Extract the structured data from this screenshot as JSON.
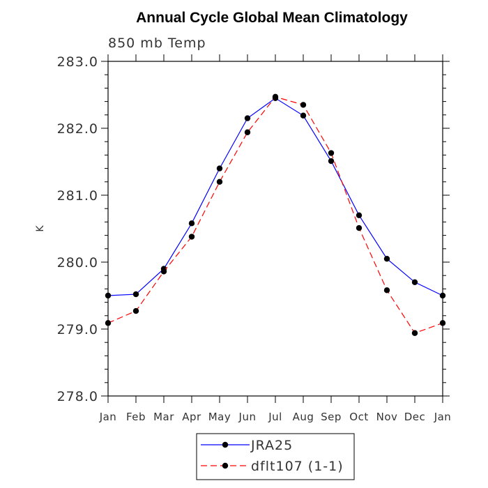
{
  "title": "Annual Cycle Global Mean Climatology",
  "chart_data": {
    "type": "line",
    "title": "Annual Cycle Global Mean Climatology",
    "subtitle": "850 mb Temp",
    "xlabel": "",
    "ylabel": "K",
    "categories": [
      "Jan",
      "Feb",
      "Mar",
      "Apr",
      "May",
      "Jun",
      "Jul",
      "Aug",
      "Sep",
      "Oct",
      "Nov",
      "Dec",
      "Jan"
    ],
    "ylim": [
      278.0,
      283.0
    ],
    "yticks": [
      "278.0",
      "279.0",
      "280.0",
      "281.0",
      "282.0",
      "283.0"
    ],
    "grid": false,
    "legend_position": "bottom",
    "series": [
      {
        "name": "JRA25",
        "color": "#0000ff",
        "line_style": "solid",
        "values": [
          279.5,
          279.52,
          279.9,
          280.58,
          281.4,
          282.15,
          282.45,
          282.19,
          281.51,
          280.7,
          280.05,
          279.7,
          279.5
        ]
      },
      {
        "name": "dflt107 (1-1)",
        "color": "#ff0000",
        "line_style": "dashed",
        "values": [
          279.09,
          279.27,
          279.86,
          280.38,
          281.2,
          281.94,
          282.47,
          282.35,
          281.63,
          280.51,
          279.58,
          278.94,
          279.09
        ]
      }
    ]
  }
}
